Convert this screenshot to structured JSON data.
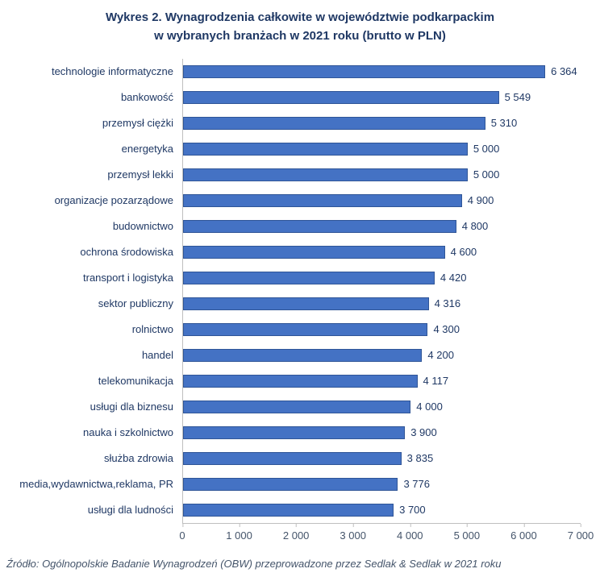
{
  "title": {
    "line1": "Wykres 2. Wynagrodzenia całkowite w województwie podkarpackim",
    "line2": "w wybranych branżach w 2021 roku (brutto w PLN)"
  },
  "chart_data": {
    "type": "bar",
    "orientation": "horizontal",
    "title": "Wykres 2. Wynagrodzenia całkowite w województwie podkarpackim w wybranych branżach w 2021 roku (brutto w PLN)",
    "xlabel": "",
    "ylabel": "",
    "categories": [
      "technologie informatyczne",
      "bankowość",
      "przemysł ciężki",
      "energetyka",
      "przemysł lekki",
      "organizacje pozarządowe",
      "budownictwo",
      "ochrona środowiska",
      "transport i logistyka",
      "sektor publiczny",
      "rolnictwo",
      "handel",
      "telekomunikacja",
      "usługi dla biznesu",
      "nauka i szkolnictwo",
      "służba zdrowia",
      "media,wydawnictwa,reklama, PR",
      "usługi dla ludności"
    ],
    "values": [
      6364,
      5549,
      5310,
      5000,
      5000,
      4900,
      4800,
      4600,
      4420,
      4316,
      4300,
      4200,
      4117,
      4000,
      3900,
      3835,
      3776,
      3700
    ],
    "value_labels": [
      "6 364",
      "5 549",
      "5 310",
      "5 000",
      "5 000",
      "4 900",
      "4 800",
      "4 600",
      "4 420",
      "4 316",
      "4 300",
      "4 200",
      "4 117",
      "4 000",
      "3 900",
      "3 835",
      "3 776",
      "3 700"
    ],
    "xlim": [
      0,
      7000
    ],
    "x_ticks": [
      0,
      1000,
      2000,
      3000,
      4000,
      5000,
      6000,
      7000
    ],
    "x_tick_labels": [
      "0",
      "1 000",
      "2 000",
      "3 000",
      "4 000",
      "5 000",
      "6 000",
      "7 000"
    ],
    "grid": false,
    "legend": "none",
    "bar_color": "#4472C4",
    "bar_border_color": "#2F5597",
    "text_color": "#1F3864"
  },
  "source": "Źródło: Ogólnopolskie Badanie Wynagrodzeń (OBW) przeprowadzone przez Sedlak & Sedlak w 2021 roku"
}
